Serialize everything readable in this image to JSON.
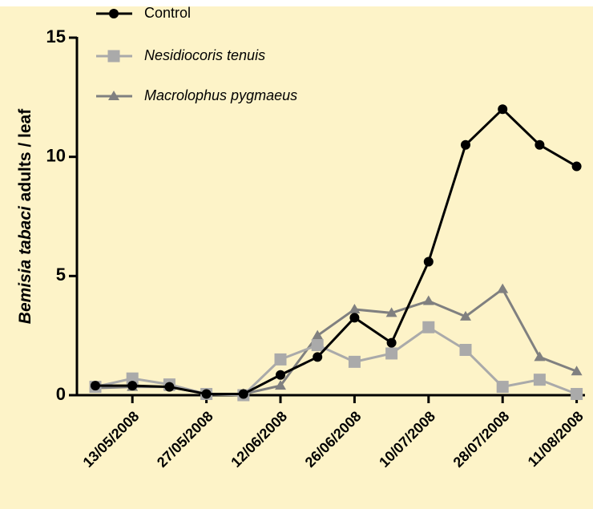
{
  "chart_data": {
    "type": "line",
    "ylabel": [
      "Bemisia tabaci",
      "adults / leaf"
    ],
    "categories": [
      null,
      "13/05/2008",
      null,
      "27/05/2008",
      null,
      "12/06/2008",
      null,
      "26/06/2008",
      null,
      "10/07/2008",
      null,
      "28/07/2008",
      null,
      "11/08/2008"
    ],
    "series": [
      {
        "name": "Control",
        "color": "#000000",
        "marker": "circle",
        "values": [
          0.4,
          0.4,
          0.35,
          0.05,
          0.05,
          0.85,
          1.6,
          3.25,
          2.2,
          5.6,
          10.5,
          12.0,
          10.5,
          9.6
        ]
      },
      {
        "name": "Nesidiocoris tenuis",
        "color": "#aaaaaa",
        "marker": "square",
        "values": [
          0.35,
          0.7,
          0.45,
          0.05,
          0.0,
          1.5,
          2.1,
          1.4,
          1.75,
          2.85,
          1.9,
          0.35,
          0.65,
          0.05
        ]
      },
      {
        "name": "Macrolophus pygmaeus",
        "color": "#808080",
        "marker": "triangle",
        "values": [
          0.3,
          0.35,
          0.35,
          0.05,
          0.05,
          0.4,
          2.5,
          3.6,
          3.45,
          3.95,
          3.3,
          4.45,
          1.6,
          1.0
        ]
      }
    ],
    "ylim": [
      0,
      15
    ],
    "yticks": [
      0,
      5,
      10,
      15
    ],
    "legend": "top-left"
  }
}
